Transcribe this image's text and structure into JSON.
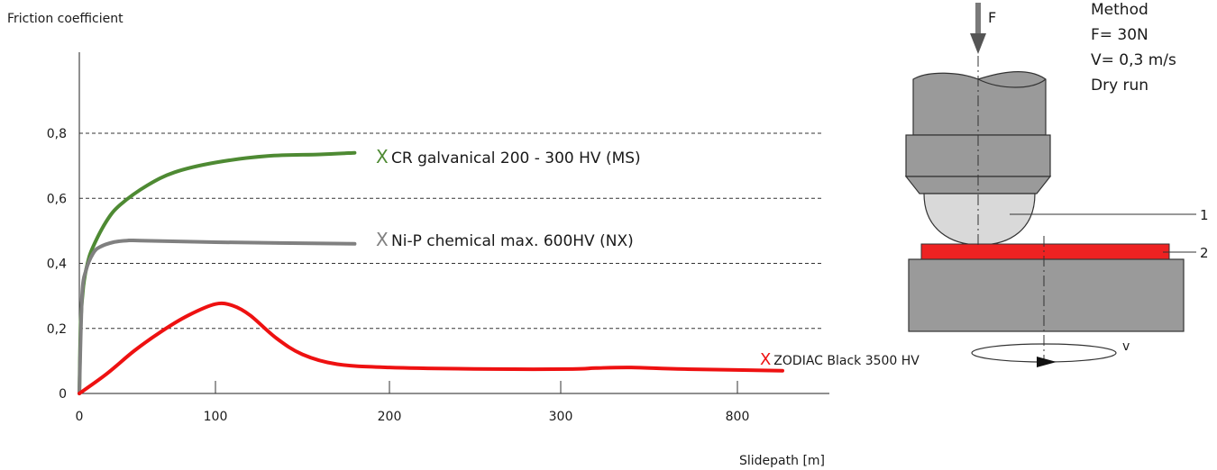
{
  "chart_data": {
    "type": "line",
    "title": "",
    "ylabel": "Friction coefficient",
    "xlabel": "Slidepath [m]",
    "x_ticks": [
      "0",
      "100",
      "200",
      "300",
      "800"
    ],
    "y_ticks": [
      "0",
      "0,2",
      "0,4",
      "0,6",
      "0,8"
    ],
    "ylim": [
      0,
      0.8
    ],
    "grid": "horizontal dashed",
    "series": [
      {
        "name": "CR galvanical 200 - 300 HV (MS)",
        "marker": "X",
        "color": "#4e8a33",
        "x": [
          0,
          1,
          3,
          6,
          10,
          20,
          30,
          50,
          70,
          100,
          130,
          160,
          180
        ],
        "y": [
          0,
          0.22,
          0.33,
          0.4,
          0.45,
          0.53,
          0.58,
          0.64,
          0.68,
          0.71,
          0.73,
          0.735,
          0.74
        ]
      },
      {
        "name": "Ni-P chemical max. 600HV (NX)",
        "marker": "X",
        "color": "#808080",
        "x": [
          0,
          2,
          5,
          10,
          15,
          25,
          35,
          45,
          100,
          180
        ],
        "y": [
          0,
          0.3,
          0.38,
          0.43,
          0.45,
          0.465,
          0.47,
          0.47,
          0.465,
          0.46
        ]
      },
      {
        "name": "ZODIAC Black 3500 HV",
        "marker": "X",
        "color": "#ee1111",
        "x": [
          0,
          20,
          40,
          60,
          80,
          100,
          110,
          120,
          135,
          150,
          170,
          200,
          260,
          330,
          400,
          500,
          650,
          830
        ],
        "y": [
          0,
          0.06,
          0.13,
          0.19,
          0.24,
          0.275,
          0.27,
          0.24,
          0.17,
          0.12,
          0.09,
          0.08,
          0.075,
          0.075,
          0.078,
          0.08,
          0.075,
          0.07
        ]
      }
    ]
  },
  "diagram": {
    "force_label": "F",
    "velocity_label": "v",
    "method_lines": [
      "Method",
      "F= 30N",
      "V= 0,3 m/s",
      "Dry run"
    ],
    "callouts": [
      "1",
      "2"
    ],
    "colors": {
      "body": "#9a9a9a",
      "ball": "#d9d9d9",
      "sample": "#ee2222",
      "outline": "#333333"
    }
  }
}
